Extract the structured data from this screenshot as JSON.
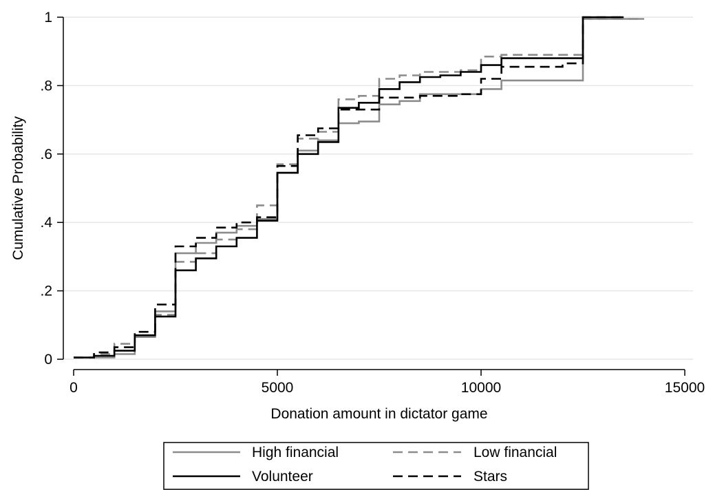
{
  "chart_data": {
    "type": "line",
    "step": true,
    "title": "",
    "xlabel": "Donation amount in dictator game",
    "ylabel": "Cumulative Probability",
    "xlim": [
      0,
      15000
    ],
    "ylim": [
      0,
      1
    ],
    "xticks": [
      {
        "value": 0,
        "label": "0"
      },
      {
        "value": 5000,
        "label": "5000"
      },
      {
        "value": 10000,
        "label": "10000"
      },
      {
        "value": 15000,
        "label": "15000"
      }
    ],
    "yticks": [
      {
        "value": 0,
        "label": "0"
      },
      {
        "value": 0.2,
        "label": ".2"
      },
      {
        "value": 0.4,
        "label": ".4"
      },
      {
        "value": 0.6,
        "label": ".6"
      },
      {
        "value": 0.8,
        "label": ".8"
      },
      {
        "value": 1,
        "label": "1"
      }
    ],
    "grid": true,
    "legend_position": "bottom",
    "series": [
      {
        "name": "High financial",
        "color": "#8c8c8c",
        "dash": "solid",
        "points": [
          [
            0,
            0.005
          ],
          [
            1000,
            0.015
          ],
          [
            1500,
            0.065
          ],
          [
            2000,
            0.14
          ],
          [
            2500,
            0.31
          ],
          [
            3000,
            0.34
          ],
          [
            3500,
            0.37
          ],
          [
            4000,
            0.39
          ],
          [
            4500,
            0.41
          ],
          [
            5000,
            0.545
          ],
          [
            5500,
            0.61
          ],
          [
            6000,
            0.64
          ],
          [
            6500,
            0.69
          ],
          [
            7000,
            0.695
          ],
          [
            7500,
            0.745
          ],
          [
            8000,
            0.755
          ],
          [
            8500,
            0.775
          ],
          [
            10000,
            0.79
          ],
          [
            10500,
            0.815
          ],
          [
            12500,
            0.995
          ],
          [
            14000,
            0.995
          ]
        ]
      },
      {
        "name": "Low financial",
        "color": "#8c8c8c",
        "dash": "dashed",
        "points": [
          [
            0,
            0.005
          ],
          [
            500,
            0.015
          ],
          [
            1000,
            0.045
          ],
          [
            1500,
            0.07
          ],
          [
            2000,
            0.13
          ],
          [
            2500,
            0.285
          ],
          [
            3000,
            0.31
          ],
          [
            3500,
            0.35
          ],
          [
            4000,
            0.38
          ],
          [
            4500,
            0.45
          ],
          [
            5000,
            0.57
          ],
          [
            5500,
            0.645
          ],
          [
            6000,
            0.665
          ],
          [
            6500,
            0.76
          ],
          [
            7000,
            0.77
          ],
          [
            7500,
            0.82
          ],
          [
            8000,
            0.83
          ],
          [
            8500,
            0.84
          ],
          [
            9500,
            0.845
          ],
          [
            10000,
            0.885
          ],
          [
            10500,
            0.89
          ],
          [
            12500,
            0.995
          ],
          [
            14000,
            0.995
          ]
        ]
      },
      {
        "name": "Volunteer",
        "color": "#000000",
        "dash": "solid",
        "points": [
          [
            0,
            0.005
          ],
          [
            500,
            0.01
          ],
          [
            1000,
            0.025
          ],
          [
            1500,
            0.07
          ],
          [
            2000,
            0.125
          ],
          [
            2500,
            0.26
          ],
          [
            3000,
            0.295
          ],
          [
            3500,
            0.33
          ],
          [
            4000,
            0.355
          ],
          [
            4500,
            0.405
          ],
          [
            5000,
            0.545
          ],
          [
            5500,
            0.6
          ],
          [
            6000,
            0.635
          ],
          [
            6500,
            0.735
          ],
          [
            7000,
            0.75
          ],
          [
            7500,
            0.79
          ],
          [
            8000,
            0.81
          ],
          [
            8500,
            0.825
          ],
          [
            9000,
            0.83
          ],
          [
            9500,
            0.84
          ],
          [
            10000,
            0.86
          ],
          [
            10500,
            0.88
          ],
          [
            12500,
            1.0
          ],
          [
            13500,
            1.0
          ]
        ]
      },
      {
        "name": "Stars",
        "color": "#000000",
        "dash": "dashed",
        "points": [
          [
            0,
            0.005
          ],
          [
            500,
            0.02
          ],
          [
            1000,
            0.035
          ],
          [
            1500,
            0.08
          ],
          [
            2000,
            0.16
          ],
          [
            2500,
            0.33
          ],
          [
            3000,
            0.355
          ],
          [
            3500,
            0.385
          ],
          [
            4000,
            0.4
          ],
          [
            4500,
            0.415
          ],
          [
            5000,
            0.565
          ],
          [
            5500,
            0.655
          ],
          [
            6000,
            0.675
          ],
          [
            6500,
            0.73
          ],
          [
            7500,
            0.765
          ],
          [
            8500,
            0.77
          ],
          [
            9500,
            0.775
          ],
          [
            10000,
            0.82
          ],
          [
            10500,
            0.855
          ],
          [
            11500,
            0.855
          ],
          [
            12000,
            0.865
          ],
          [
            12500,
            1.0
          ],
          [
            13500,
            1.0
          ]
        ]
      }
    ]
  }
}
